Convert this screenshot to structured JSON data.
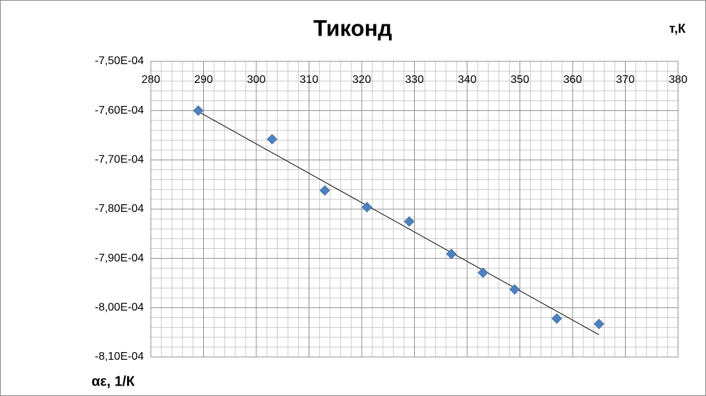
{
  "chart_data": {
    "type": "scatter",
    "title": "Тиконд",
    "xlabel": "т,К",
    "ylabel": "αε, 1/К",
    "x": [
      289,
      303,
      313,
      321,
      329,
      337,
      343,
      349,
      357,
      365
    ],
    "series": [
      {
        "color": "#4f81bd",
        "values": [
          -0.00076,
          -0.0007658,
          -0.0007762,
          -0.0007796,
          -0.0007825,
          -0.0007891,
          -0.0007929,
          -0.0007963,
          -0.0008022,
          -0.0008033
        ]
      }
    ],
    "trendline": {
      "x": [
        289,
        365
      ],
      "y": [
        -0.0007602,
        -0.0008055
      ],
      "color": "#000000"
    },
    "xlim": [
      280,
      380
    ],
    "xticks": [
      280,
      290,
      300,
      310,
      320,
      330,
      340,
      350,
      360,
      370,
      380
    ],
    "ylim": [
      -0.00081,
      -0.00075
    ],
    "yticks": [
      {
        "value": -0.00075,
        "label": "-7,50E-04"
      },
      {
        "value": -0.00076,
        "label": "-7,60E-04"
      },
      {
        "value": -0.00077,
        "label": "-7,70E-04"
      },
      {
        "value": -0.00078,
        "label": "-7,80E-04"
      },
      {
        "value": -0.00079,
        "label": "-7,90E-04"
      },
      {
        "value": -0.0008,
        "label": "-8,00E-04"
      },
      {
        "value": -0.00081,
        "label": "-8,10E-04"
      }
    ],
    "grid": true,
    "minor_grid": true
  }
}
